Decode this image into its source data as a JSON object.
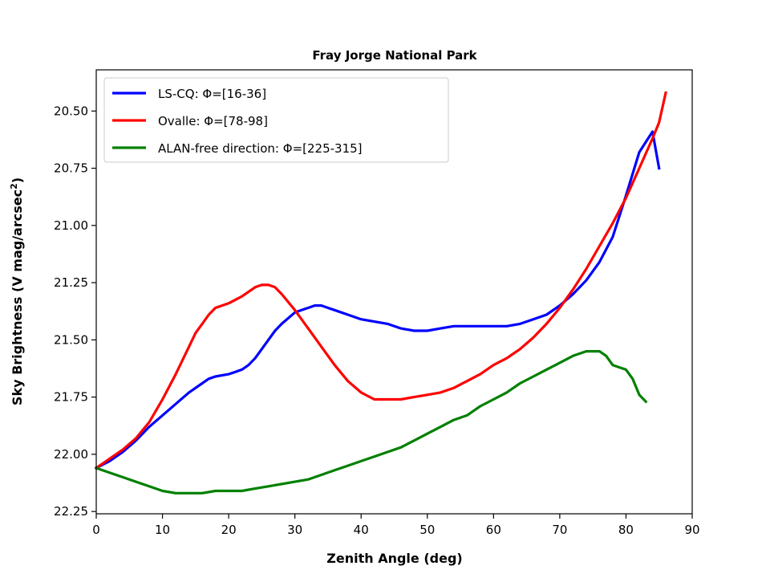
{
  "chart_data": {
    "type": "line",
    "title": "Fray Jorge National Park",
    "xlabel": "Zenith Angle (deg)",
    "ylabel": "Sky Brightness (V mag/arcsec",
    "ylabel_sup": "2",
    "ylabel_suffix": ")",
    "xlim": [
      0,
      90
    ],
    "ylim": [
      22.26,
      20.32
    ],
    "y_inverted": true,
    "grid": false,
    "legend_position": "top-left",
    "x_ticks": [
      0,
      10,
      20,
      30,
      40,
      50,
      60,
      70,
      80,
      90
    ],
    "x_tick_labels": [
      "0",
      "10",
      "20",
      "30",
      "40",
      "50",
      "60",
      "70",
      "80",
      "90"
    ],
    "y_ticks": [
      20.5,
      20.75,
      21.0,
      21.25,
      21.5,
      21.75,
      22.0,
      22.25
    ],
    "y_tick_labels": [
      "20.50",
      "20.75",
      "21.00",
      "21.25",
      "21.50",
      "21.75",
      "22.00",
      "22.25"
    ],
    "series": [
      {
        "name": "LS-CQ: Φ=[16-36]",
        "color": "#0000ff",
        "x": [
          0,
          2,
          4,
          6,
          8,
          10,
          12,
          14,
          16,
          17,
          18,
          20,
          21,
          22,
          23,
          24,
          25,
          26,
          27,
          28,
          30,
          31,
          32,
          33,
          34,
          35,
          36,
          38,
          40,
          42,
          44,
          46,
          48,
          50,
          52,
          54,
          56,
          58,
          60,
          62,
          64,
          66,
          68,
          70,
          72,
          74,
          76,
          78,
          80,
          82,
          84,
          85
        ],
        "y": [
          22.06,
          22.03,
          21.99,
          21.94,
          21.88,
          21.83,
          21.78,
          21.73,
          21.69,
          21.67,
          21.66,
          21.65,
          21.64,
          21.63,
          21.61,
          21.58,
          21.54,
          21.5,
          21.46,
          21.43,
          21.38,
          21.37,
          21.36,
          21.35,
          21.35,
          21.36,
          21.37,
          21.39,
          21.41,
          21.42,
          21.43,
          21.45,
          21.46,
          21.46,
          21.45,
          21.44,
          21.44,
          21.44,
          21.44,
          21.44,
          21.43,
          21.41,
          21.39,
          21.35,
          21.3,
          21.24,
          21.16,
          21.05,
          20.87,
          20.68,
          20.59,
          20.75
        ]
      },
      {
        "name": "Ovalle: Φ=[78-98]",
        "color": "#ff0000",
        "x": [
          0,
          2,
          4,
          6,
          8,
          10,
          12,
          14,
          15,
          16,
          17,
          18,
          20,
          22,
          24,
          25,
          26,
          27,
          28,
          30,
          32,
          34,
          36,
          38,
          40,
          42,
          44,
          46,
          48,
          50,
          52,
          54,
          56,
          58,
          60,
          62,
          64,
          66,
          68,
          70,
          72,
          74,
          76,
          78,
          80,
          82,
          84,
          85,
          86
        ],
        "y": [
          22.06,
          22.02,
          21.98,
          21.93,
          21.86,
          21.76,
          21.65,
          21.53,
          21.47,
          21.43,
          21.39,
          21.36,
          21.34,
          21.31,
          21.27,
          21.26,
          21.26,
          21.27,
          21.3,
          21.37,
          21.45,
          21.53,
          21.61,
          21.68,
          21.73,
          21.76,
          21.76,
          21.76,
          21.75,
          21.74,
          21.73,
          21.71,
          21.68,
          21.65,
          21.61,
          21.58,
          21.54,
          21.49,
          21.43,
          21.36,
          21.28,
          21.19,
          21.09,
          20.99,
          20.88,
          20.75,
          20.62,
          20.55,
          20.42
        ]
      },
      {
        "name": "ALAN-free direction: Φ=[225-315]",
        "color": "#008000",
        "x": [
          0,
          2,
          4,
          6,
          8,
          10,
          12,
          14,
          16,
          18,
          20,
          22,
          24,
          26,
          28,
          30,
          32,
          34,
          36,
          38,
          40,
          42,
          44,
          46,
          48,
          50,
          52,
          54,
          56,
          58,
          60,
          62,
          64,
          66,
          68,
          70,
          72,
          74,
          75,
          76,
          77,
          78,
          79,
          80,
          81,
          82,
          83
        ],
        "y": [
          22.06,
          22.08,
          22.1,
          22.12,
          22.14,
          22.16,
          22.17,
          22.17,
          22.17,
          22.16,
          22.16,
          22.16,
          22.15,
          22.14,
          22.13,
          22.12,
          22.11,
          22.09,
          22.07,
          22.05,
          22.03,
          22.01,
          21.99,
          21.97,
          21.94,
          21.91,
          21.88,
          21.85,
          21.83,
          21.79,
          21.76,
          21.73,
          21.69,
          21.66,
          21.63,
          21.6,
          21.57,
          21.55,
          21.55,
          21.55,
          21.57,
          21.61,
          21.62,
          21.63,
          21.67,
          21.74,
          21.77
        ]
      }
    ]
  }
}
